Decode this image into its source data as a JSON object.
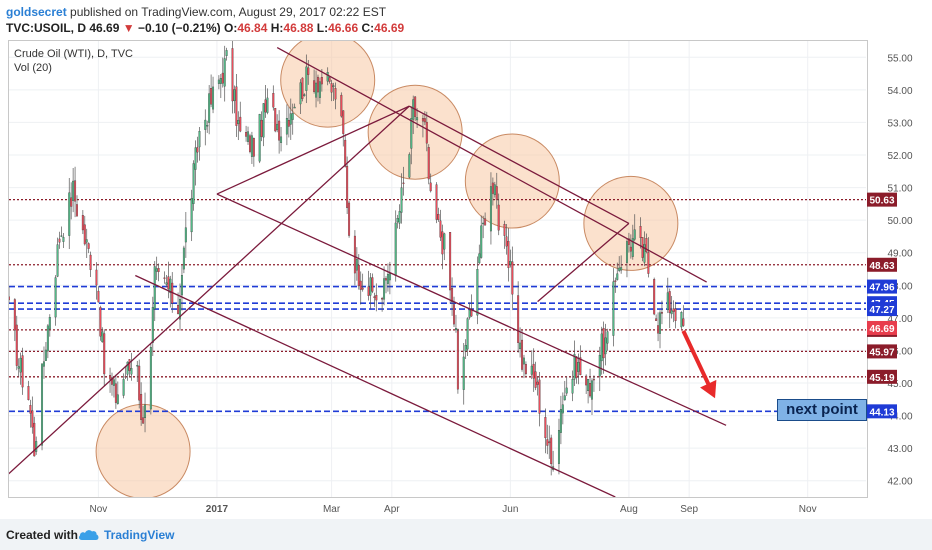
{
  "header": {
    "author": "goldsecret",
    "published_text": "published on TradingView.com, August 29, 2017 02:22 EST",
    "symbol": "TVC:USOIL, D",
    "last": "46.69",
    "change": "−0.10 (−0.21%)",
    "open_label": "O:",
    "open": "46.84",
    "high_label": "H:",
    "high": "46.88",
    "low_label": "L:",
    "low": "46.66",
    "close_label": "C:",
    "close": "46.69"
  },
  "chart_data": {
    "type": "candlestick",
    "title": "Crude Oil (WTI), D, TVC",
    "volume_label": "Vol (20)",
    "ylim": [
      41.5,
      55.5
    ],
    "y_ticks": [
      "42.00",
      "43.00",
      "44.00",
      "45.00",
      "46.00",
      "47.00",
      "48.00",
      "49.00",
      "50.00",
      "51.00",
      "52.00",
      "53.00",
      "54.00",
      "55.00"
    ],
    "x_ticks": [
      "Nov",
      "2017",
      "Mar",
      "Apr",
      "Jun",
      "Aug",
      "Sep",
      "Nov"
    ],
    "x_tick_dates": [
      "2016-11-01",
      "2017-01-01",
      "2017-03-01",
      "2017-04-01",
      "2017-06-01",
      "2017-08-01",
      "2017-09-01",
      "2017-11-01"
    ],
    "date_range": [
      "2016-09-16",
      "2017-12-01"
    ],
    "price_levels": [
      {
        "label": "50.63",
        "value": 50.63,
        "style": "maroon-dotted"
      },
      {
        "label": "48.63",
        "value": 48.63,
        "style": "maroon-dotted"
      },
      {
        "label": "47.96",
        "value": 47.96,
        "style": "blue-dashed"
      },
      {
        "label": "47.45",
        "value": 47.45,
        "style": "blue-dashed"
      },
      {
        "label": "47.27",
        "value": 47.27,
        "style": "blue-dashed"
      },
      {
        "label": "46.63",
        "value": 46.63,
        "style": "maroon-dotted"
      },
      {
        "label": "45.97",
        "value": 45.97,
        "style": "maroon-dotted"
      },
      {
        "label": "45.19",
        "value": 45.19,
        "style": "maroon-dotted"
      },
      {
        "label": "44.13",
        "value": 44.13,
        "style": "blue-dashed"
      }
    ],
    "last_price": {
      "label": "46.69",
      "value": 46.69
    },
    "price_path": [
      [
        "2016-09-16",
        47.2
      ],
      [
        "2016-09-21",
        45.6
      ],
      [
        "2016-09-26",
        44.6
      ],
      [
        "2016-09-29",
        43.0
      ],
      [
        "2016-10-05",
        46.3
      ],
      [
        "2016-10-12",
        49.5
      ],
      [
        "2016-10-19",
        50.9
      ],
      [
        "2016-10-25",
        49.4
      ],
      [
        "2016-10-31",
        48.3
      ],
      [
        "2016-11-04",
        45.4
      ],
      [
        "2016-11-10",
        44.6
      ],
      [
        "2016-11-15",
        45.3
      ],
      [
        "2016-11-21",
        45.8
      ],
      [
        "2016-11-23",
        43.7
      ],
      [
        "2016-11-28",
        45.9
      ],
      [
        "2016-11-30",
        48.2
      ],
      [
        "2016-12-06",
        48.0
      ],
      [
        "2016-12-12",
        47.3
      ],
      [
        "2016-12-16",
        49.6
      ],
      [
        "2016-12-23",
        52.7
      ],
      [
        "2016-12-30",
        53.8
      ],
      [
        "2017-01-06",
        54.9
      ],
      [
        "2017-01-13",
        52.6
      ],
      [
        "2017-01-20",
        52.3
      ],
      [
        "2017-01-27",
        53.5
      ],
      [
        "2017-02-03",
        52.8
      ],
      [
        "2017-02-10",
        53.7
      ],
      [
        "2017-02-17",
        54.4
      ],
      [
        "2017-02-24",
        54.3
      ],
      [
        "2017-03-03",
        53.9
      ],
      [
        "2017-03-07",
        52.5
      ],
      [
        "2017-03-10",
        49.7
      ],
      [
        "2017-03-14",
        48.5
      ],
      [
        "2017-03-21",
        47.8
      ],
      [
        "2017-03-27",
        47.6
      ],
      [
        "2017-04-03",
        49.6
      ],
      [
        "2017-04-10",
        52.1
      ],
      [
        "2017-04-12",
        53.4
      ],
      [
        "2017-04-18",
        52.8
      ],
      [
        "2017-04-21",
        50.5
      ],
      [
        "2017-04-28",
        49.2
      ],
      [
        "2017-05-04",
        46.5
      ],
      [
        "2017-05-05",
        44.6
      ],
      [
        "2017-05-12",
        47.5
      ],
      [
        "2017-05-19",
        50.2
      ],
      [
        "2017-05-24",
        51.4
      ],
      [
        "2017-05-26",
        49.9
      ],
      [
        "2017-06-01",
        48.3
      ],
      [
        "2017-06-07",
        45.7
      ],
      [
        "2017-06-14",
        45.0
      ],
      [
        "2017-06-20",
        43.2
      ],
      [
        "2017-06-22",
        42.5
      ],
      [
        "2017-06-28",
        44.6
      ],
      [
        "2017-07-05",
        45.6
      ],
      [
        "2017-07-11",
        44.8
      ],
      [
        "2017-07-17",
        46.0
      ],
      [
        "2017-07-21",
        46.3
      ],
      [
        "2017-07-26",
        48.6
      ],
      [
        "2017-08-01",
        49.3
      ],
      [
        "2017-08-04",
        49.4
      ],
      [
        "2017-08-10",
        48.8
      ],
      [
        "2017-08-16",
        46.9
      ],
      [
        "2017-08-21",
        47.4
      ],
      [
        "2017-08-24",
        47.4
      ],
      [
        "2017-08-29",
        46.7
      ]
    ],
    "trend_lines": [
      {
        "from": [
          "2016-09-01",
          41.4
        ],
        "to": [
          "2017-04-10",
          53.5
        ]
      },
      {
        "from": [
          "2017-01-01",
          50.8
        ],
        "to": [
          "2017-04-10",
          53.5
        ]
      },
      {
        "from": [
          "2017-02-01",
          55.3
        ],
        "to": [
          "2017-09-10",
          48.1
        ]
      },
      {
        "from": [
          "2017-01-01",
          50.8
        ],
        "to": [
          "2017-09-20",
          43.7
        ]
      },
      {
        "from": [
          "2016-11-20",
          48.3
        ],
        "to": [
          "2017-07-25",
          41.5
        ]
      },
      {
        "from": [
          "2017-04-10",
          53.5
        ],
        "to": [
          "2017-08-01",
          49.9
        ]
      },
      {
        "from": [
          "2017-06-15",
          47.5
        ],
        "to": [
          "2017-08-01",
          49.9
        ]
      }
    ],
    "circles": [
      {
        "date": "2016-11-24",
        "value": 42.9
      },
      {
        "date": "2017-02-27",
        "value": 54.3
      },
      {
        "date": "2017-04-13",
        "value": 52.7
      },
      {
        "date": "2017-06-02",
        "value": 51.2
      },
      {
        "date": "2017-08-02",
        "value": 49.9
      }
    ],
    "forecast_arrow": {
      "from": [
        "2017-08-29",
        46.6
      ],
      "to": [
        "2017-09-13",
        44.7
      ]
    },
    "annotation": "next point",
    "colors": {
      "up": "#53b987",
      "down": "#eb4d5c",
      "wick": "#555555",
      "trend": "#7b1a3c",
      "maroon_level": "#8b1c2a",
      "blue_level": "#1f3bd6",
      "circle_fill": "#f7c9a4",
      "circle_stroke": "#c98a63",
      "arrow": "#e82a2a"
    }
  },
  "footer": {
    "created_with": "Created with",
    "brand": "TradingView"
  }
}
